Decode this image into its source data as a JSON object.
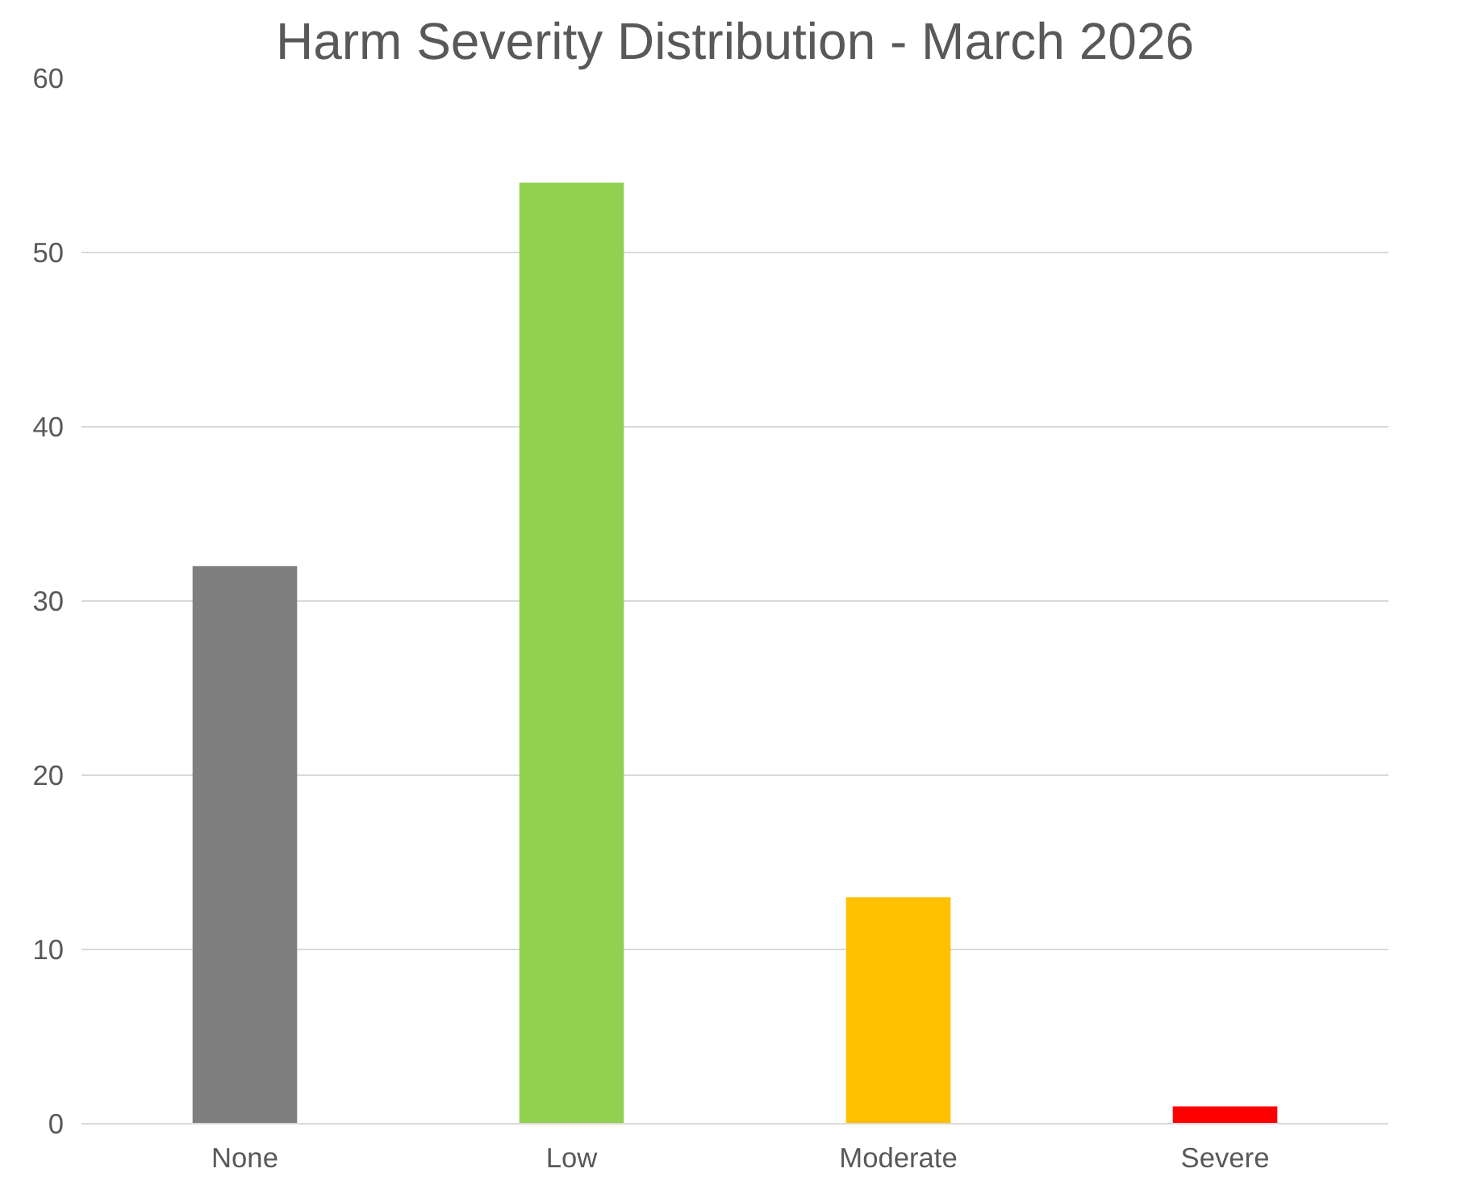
{
  "chart_data": {
    "type": "bar",
    "title": "Harm Severity Distribution - March 2026",
    "categories": [
      "None",
      "Low",
      "Moderate",
      "Severe"
    ],
    "values": [
      32,
      54,
      13,
      1
    ],
    "colors": [
      "#7f7f7f",
      "#92d050",
      "#ffc000",
      "#ff0000"
    ],
    "ylim": [
      0,
      60
    ],
    "yticks": [
      0,
      10,
      20,
      30,
      40,
      50,
      60
    ],
    "grid": "y"
  }
}
